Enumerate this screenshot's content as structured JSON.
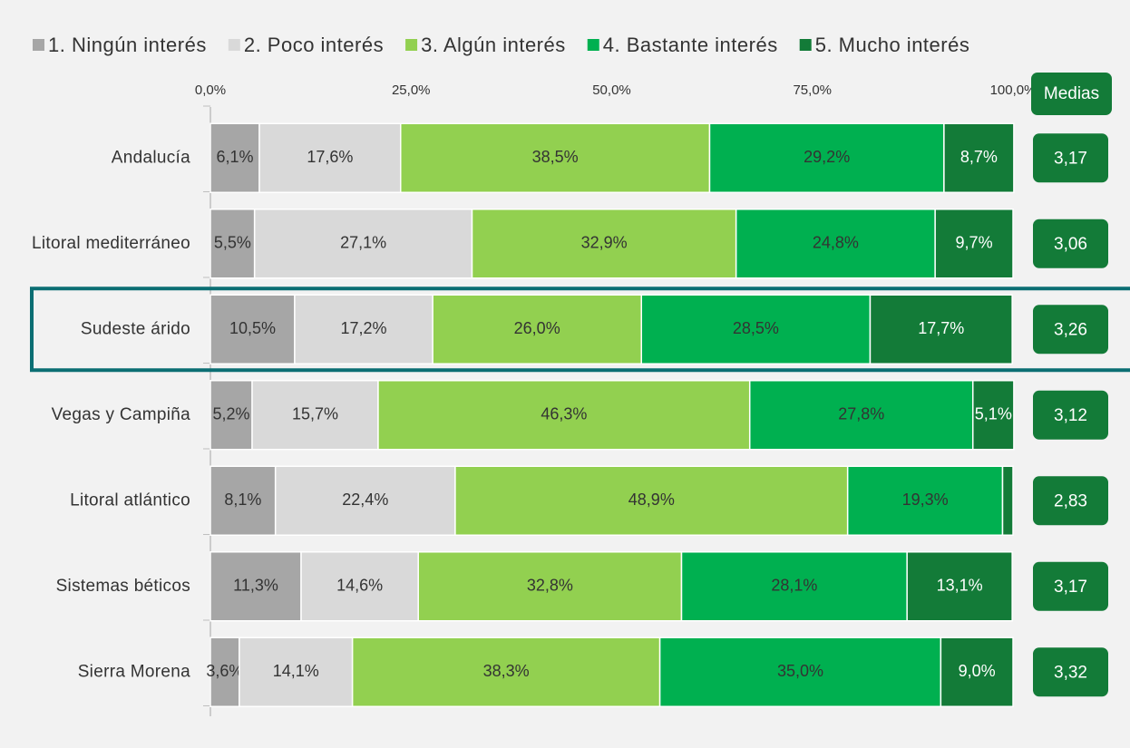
{
  "chart_data": {
    "type": "stacked_bar_horizontal",
    "categories": [
      "Andalucía",
      "Litoral mediterráneo",
      "Sudeste árido",
      "Vegas y Campiña",
      "Litoral atlántico",
      "Sistemas béticos",
      "Sierra Morena"
    ],
    "series": [
      {
        "name": "1. Ningún interés",
        "color": "#a6a6a6",
        "values": [
          6.1,
          5.5,
          10.5,
          5.2,
          8.1,
          11.3,
          3.6
        ],
        "value_labels": [
          "6,1%",
          "5,5%",
          "10,5%",
          "5,2%",
          "8,1%",
          "11,3%",
          "3,6%"
        ]
      },
      {
        "name": "2. Poco interés",
        "color": "#d9d9d9",
        "values": [
          17.6,
          27.1,
          17.2,
          15.7,
          22.4,
          14.6,
          14.1
        ],
        "value_labels": [
          "17,6%",
          "27,1%",
          "17,2%",
          "15,7%",
          "22,4%",
          "14,6%",
          "14,1%"
        ]
      },
      {
        "name": "3. Algún interés",
        "color": "#92d050",
        "values": [
          38.5,
          32.9,
          26.0,
          46.3,
          48.9,
          32.8,
          38.3
        ],
        "value_labels": [
          "38,5%",
          "32,9%",
          "26,0%",
          "46,3%",
          "48,9%",
          "32,8%",
          "38,3%"
        ]
      },
      {
        "name": "4. Bastante interés",
        "color": "#00b050",
        "values": [
          29.2,
          24.8,
          28.5,
          27.8,
          19.3,
          28.1,
          35.0
        ],
        "value_labels": [
          "29,2%",
          "24,8%",
          "28,5%",
          "27,8%",
          "19,3%",
          "28,1%",
          "35,0%"
        ]
      },
      {
        "name": "5. Mucho interés",
        "color": "#137b38",
        "values": [
          8.7,
          9.7,
          17.7,
          5.1,
          1.3,
          13.1,
          9.0
        ],
        "value_labels": [
          "8,7%",
          "9,7%",
          "17,7%",
          "5,1%",
          null,
          "13,1%",
          "9,0%"
        ]
      }
    ],
    "xlim": [
      0,
      100
    ],
    "xticks": [
      {
        "value": 0,
        "label": "0,0%"
      },
      {
        "value": 25,
        "label": "25,0%"
      },
      {
        "value": 50,
        "label": "50,0%"
      },
      {
        "value": 75,
        "label": "75,0%"
      },
      {
        "value": 100,
        "label": "100,0%"
      }
    ],
    "legend": "top",
    "means_title": "Medias",
    "means": [
      3.17,
      3.06,
      3.26,
      3.12,
      2.83,
      3.17,
      3.32
    ],
    "means_labels": [
      "3,17",
      "3,06",
      "3,26",
      "3,12",
      "2,83",
      "3,17",
      "3,32"
    ],
    "highlight": "Sudeste árido"
  }
}
